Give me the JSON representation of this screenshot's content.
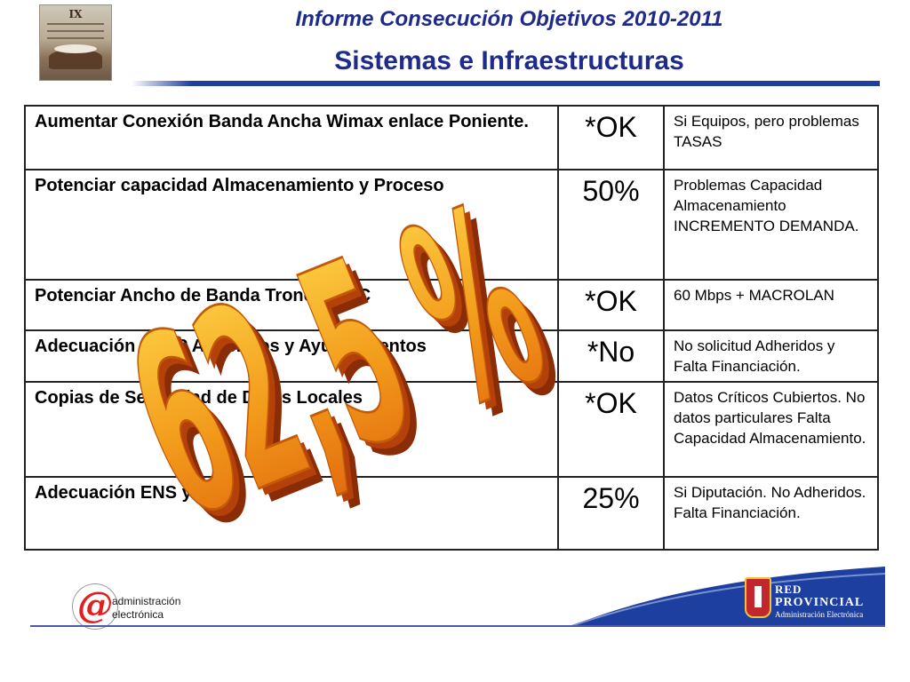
{
  "header": {
    "title": "Informe Consecución Objetivos 2010-2011",
    "subtitle": "Sistemas e Infraestructuras",
    "thumbnail_icon": "conference-poster-thumbnail",
    "thumbnail_label": "IX"
  },
  "table": {
    "rows": [
      {
        "objective": "Aumentar Conexión Banda Ancha Wimax enlace Poniente.",
        "status": "*OK",
        "notes": "Si Equipos, pero problemas TASAS"
      },
      {
        "objective": "Potenciar capacidad Almacenamiento y Proceso",
        "status": "50%",
        "notes": "Problemas Capacidad Almacenamiento INCREMENTO DEMANDA."
      },
      {
        "objective": "Potenciar Ancho de Banda Troncal RPC",
        "status": "*OK",
        "notes": "60 Mbps + MACROLAN"
      },
      {
        "objective": "Adecuación LPDP Adheridos y Ayuntamientos",
        "status": "*No",
        "notes": "No solicitud Adheridos y Falta Financiación."
      },
      {
        "objective": "Copias de Seguridad de Datos Locales",
        "status": "*OK",
        "notes": "Datos Críticos Cubiertos. No datos particulares Falta Capacidad Almacenamiento."
      },
      {
        "objective": "Adecuación ENS y ENI",
        "status": "25%",
        "notes": "Si Diputación. No Adheridos. Falta Financiación."
      }
    ]
  },
  "overlay": {
    "percentage": "62,5 %",
    "fill_color": "#f29a1a",
    "shadow_color": "#8a2c06"
  },
  "footer": {
    "ae_logo_icon": "administracion-electronica-logo",
    "ae_at": "@",
    "ae_line1": "administración",
    "ae_line2": "electrónica",
    "rp_logo_icon": "red-provincial-logo",
    "rp_line1": "RED",
    "rp_line2": "PROVINCIAL",
    "rp_line3": "Administración Electrónica"
  }
}
